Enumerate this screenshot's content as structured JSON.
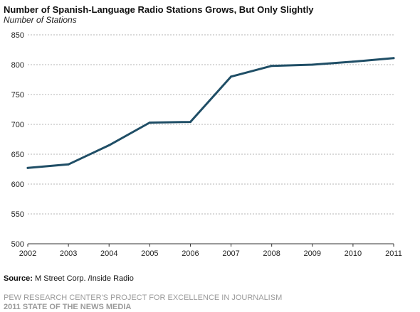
{
  "title": "Number of Spanish-Language Radio Stations Grows, But Only Slightly",
  "subtitle": "Number of Stations",
  "source_label": "Source:",
  "source_text": "M Street Corp. /Inside Radio",
  "footer_line1": "PEW RESEARCH CENTER'S PROJECT FOR EXCELLENCE IN JOURNALISM",
  "footer_line2": "2011 STATE OF THE NEWS MEDIA",
  "colors": {
    "line": "#1f4e66",
    "grid": "#b5b5b5",
    "axis": "#333333"
  },
  "chart_data": {
    "type": "line",
    "title": "Number of Spanish-Language Radio Stations Grows, But Only Slightly",
    "ylabel": "Number of Stations",
    "xlabel": "",
    "x": [
      "2002",
      "2003",
      "2004",
      "2005",
      "2006",
      "2007",
      "2008",
      "2009",
      "2010",
      "2011"
    ],
    "series": [
      {
        "values": [
          627,
          633,
          665,
          703,
          704,
          780,
          798,
          800,
          805,
          811
        ]
      }
    ],
    "ylim": [
      500,
      850
    ],
    "yticks": [
      500,
      550,
      600,
      650,
      700,
      750,
      800,
      850
    ],
    "grid": true,
    "legend": "none"
  }
}
